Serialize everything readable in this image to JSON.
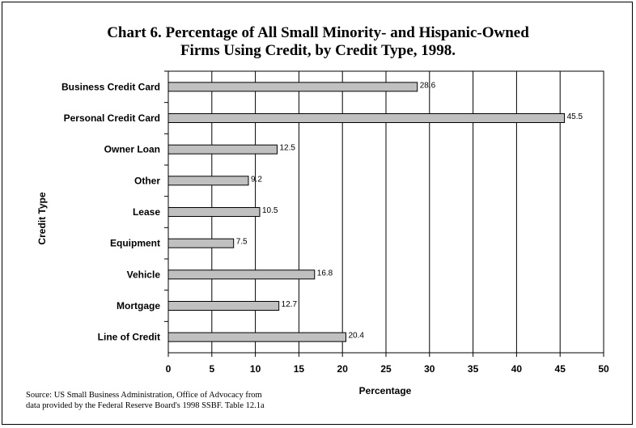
{
  "chart_data": {
    "type": "bar",
    "orientation": "horizontal",
    "title": "Chart 6. Percentage of All Small Minority- and Hispanic-Owned Firms Using Credit, by Credit Type, 1998.",
    "title_lines": [
      "Chart 6. Percentage of All Small Minority- and Hispanic-Owned",
      "Firms Using Credit, by Credit Type, 1998."
    ],
    "categories": [
      "Business Credit Card",
      "Personal Credit Card",
      "Owner Loan",
      "Other",
      "Lease",
      "Equipment",
      "Vehicle",
      "Mortgage",
      "Line of Credit"
    ],
    "values": [
      28.6,
      45.5,
      12.5,
      9.2,
      10.5,
      7.5,
      16.8,
      12.7,
      20.4
    ],
    "data_labels": [
      "28.6",
      "45.5",
      "12.5",
      "9.2",
      "10.5",
      "7.5",
      "16.8",
      "12.7",
      "20.4"
    ],
    "xlabel": "Percentage",
    "ylabel": "Credit Type",
    "xlim": [
      0,
      50
    ],
    "xticks": [
      0,
      5,
      10,
      15,
      20,
      25,
      30,
      35,
      40,
      45,
      50
    ],
    "grid": "vertical",
    "legend": "none",
    "bar_color": "#c0c0c0"
  },
  "source_lines": [
    "Source:  US Small Business Administration, Office of Advocacy from",
    "data provided by the Federal Reserve Board's 1998 SSBF.  Table 12.1a"
  ]
}
